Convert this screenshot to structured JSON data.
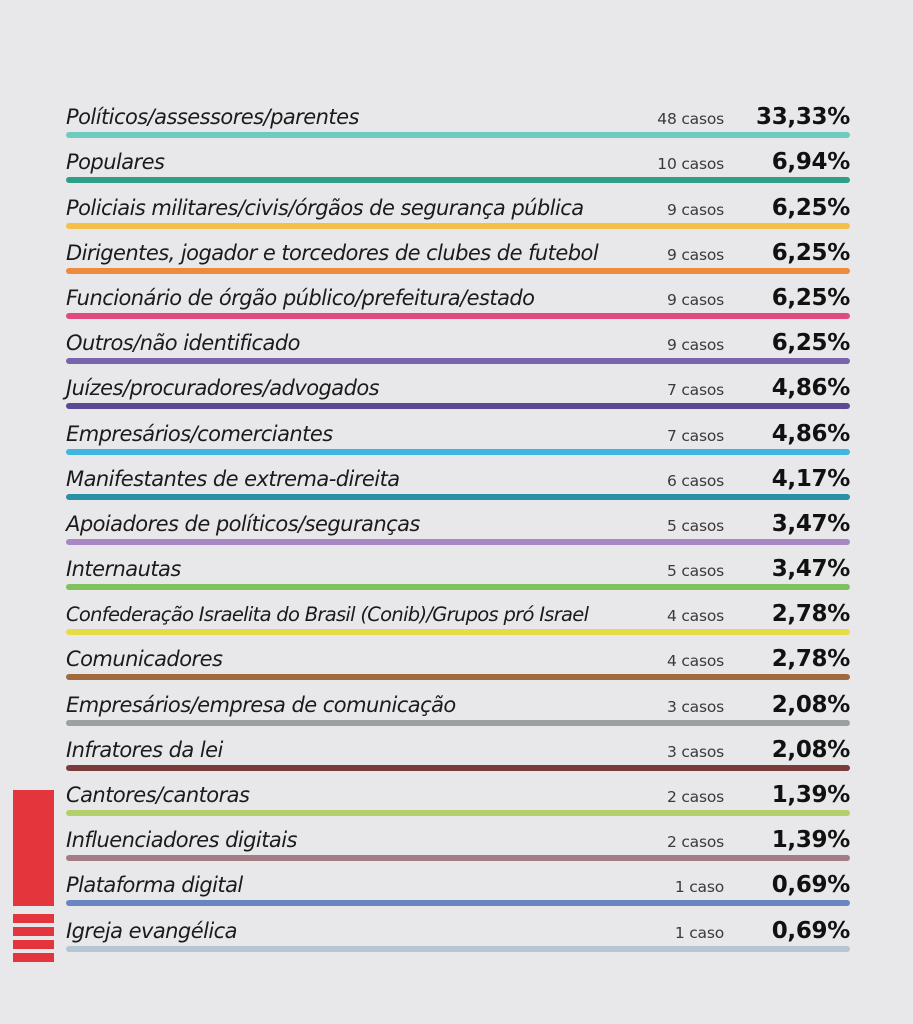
{
  "chart_data": {
    "type": "table",
    "rows": [
      {
        "label": "Políticos/assessores/parentes",
        "count_text": "48 casos",
        "count": 48,
        "pct_text": "33,33%",
        "pct": 33.33,
        "color": "#6ecbbd"
      },
      {
        "label": "Populares",
        "count_text": "10 casos",
        "count": 10,
        "pct_text": "6,94%",
        "pct": 6.94,
        "color": "#2e9e87"
      },
      {
        "label": "Policiais militares/civis/órgãos de segurança pública",
        "count_text": "9 casos",
        "count": 9,
        "pct_text": "6,25%",
        "pct": 6.25,
        "color": "#f5c04a"
      },
      {
        "label": "Dirigentes, jogador e torcedores de clubes de futebol",
        "count_text": "9 casos",
        "count": 9,
        "pct_text": "6,25%",
        "pct": 6.25,
        "color": "#ee8a3c"
      },
      {
        "label": "Funcionário de órgão público/prefeitura/estado",
        "count_text": "9 casos",
        "count": 9,
        "pct_text": "6,25%",
        "pct": 6.25,
        "color": "#e24a7f"
      },
      {
        "label": "Outros/não identificado",
        "count_text": "9 casos",
        "count": 9,
        "pct_text": "6,25%",
        "pct": 6.25,
        "color": "#7a63ad"
      },
      {
        "label": "Juízes/procuradores/advogados",
        "count_text": "7 casos",
        "count": 7,
        "pct_text": "4,86%",
        "pct": 4.86,
        "color": "#5a4a94"
      },
      {
        "label": "Empresários/comerciantes",
        "count_text": "7 casos",
        "count": 7,
        "pct_text": "4,86%",
        "pct": 4.86,
        "color": "#3fb5e2"
      },
      {
        "label": "Manifestantes de extrema-direita",
        "count_text": "6 casos",
        "count": 6,
        "pct_text": "4,17%",
        "pct": 4.17,
        "color": "#2b8fa6"
      },
      {
        "label": "Apoiadores de políticos/seguranças",
        "count_text": "5 casos",
        "count": 5,
        "pct_text": "3,47%",
        "pct": 3.47,
        "color": "#a887c2"
      },
      {
        "label": "Internautas",
        "count_text": "5 casos",
        "count": 5,
        "pct_text": "3,47%",
        "pct": 3.47,
        "color": "#7dc25a"
      },
      {
        "label": "Confederação Israelita do Brasil (Conib)/Grupos pró Israel",
        "count_text": "4 casos",
        "count": 4,
        "pct_text": "2,78%",
        "pct": 2.78,
        "color": "#e6dc44"
      },
      {
        "label": "Comunicadores",
        "count_text": "4 casos",
        "count": 4,
        "pct_text": "2,78%",
        "pct": 2.78,
        "color": "#a06a3e"
      },
      {
        "label": "Empresários/empresa de comunicação",
        "count_text": "3 casos",
        "count": 3,
        "pct_text": "2,08%",
        "pct": 2.08,
        "color": "#9aa19f"
      },
      {
        "label": "Infratores da lei",
        "count_text": "3 casos",
        "count": 3,
        "pct_text": "2,08%",
        "pct": 2.08,
        "color": "#7a3b3d"
      },
      {
        "label": "Cantores/cantoras",
        "count_text": "2 casos",
        "count": 2,
        "pct_text": "1,39%",
        "pct": 1.39,
        "color": "#b3d06a"
      },
      {
        "label": "Influenciadores digitais",
        "count_text": "2 casos",
        "count": 2,
        "pct_text": "1,39%",
        "pct": 1.39,
        "color": "#a47c84"
      },
      {
        "label": "Plataforma digital",
        "count_text": "1 caso",
        "count": 1,
        "pct_text": "0,69%",
        "pct": 0.69,
        "color": "#6a86c2"
      },
      {
        "label": "Igreja evangélica",
        "count_text": "1 caso",
        "count": 1,
        "pct_text": "0,69%",
        "pct": 0.69,
        "color": "#b4c6d2"
      }
    ]
  },
  "decor": {
    "accent_color": "#e4343c"
  }
}
